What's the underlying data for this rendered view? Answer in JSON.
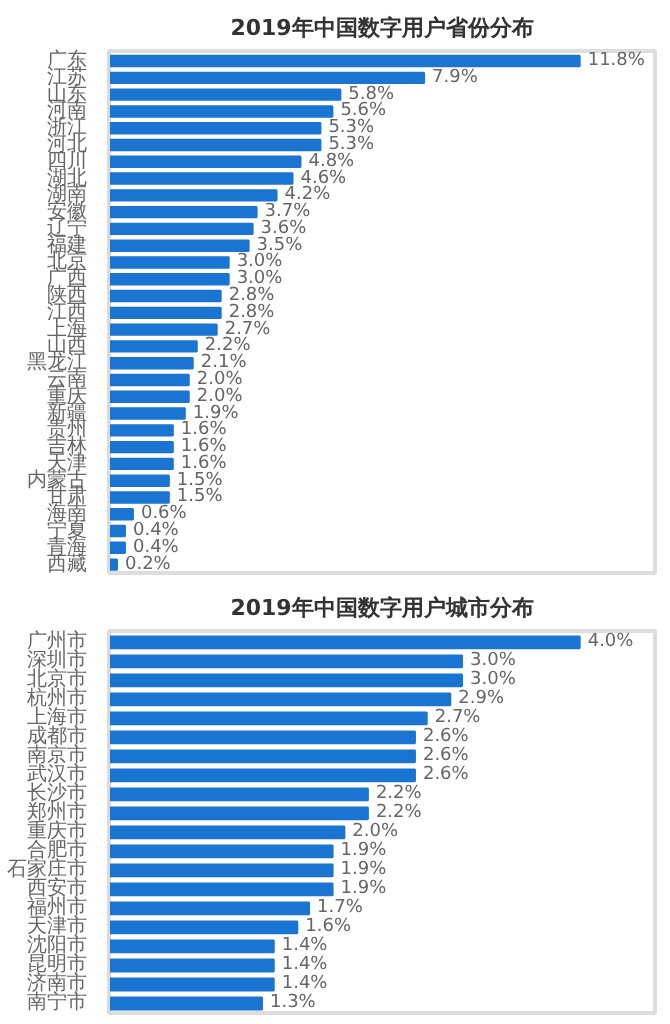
{
  "chart_data": [
    {
      "type": "bar",
      "orientation": "horizontal",
      "title": "2019年中国数字用户省份分布",
      "tick_labels": "y",
      "color": "#1a74d2",
      "categories": [
        "广东",
        "江苏",
        "山东",
        "河南",
        "浙江",
        "河北",
        "四川",
        "湖北",
        "湖南",
        "安徽",
        "辽宁",
        "福建",
        "北京",
        "广西",
        "陕西",
        "江西",
        "上海",
        "山西",
        "黑龙江",
        "云南",
        "重庆",
        "新疆",
        "贵州",
        "吉林",
        "天津",
        "内蒙古",
        "甘肃",
        "海南",
        "宁夏",
        "青海",
        "西藏"
      ],
      "values": [
        11.8,
        7.9,
        5.8,
        5.6,
        5.3,
        5.3,
        4.8,
        4.6,
        4.2,
        3.7,
        3.6,
        3.5,
        3.0,
        3.0,
        2.8,
        2.8,
        2.7,
        2.2,
        2.1,
        2.0,
        2.0,
        1.9,
        1.6,
        1.6,
        1.6,
        1.5,
        1.5,
        0.6,
        0.4,
        0.4,
        0.2
      ],
      "value_labels": [
        "11.8%",
        "7.9%",
        "5.8%",
        "5.6%",
        "5.3%",
        "5.3%",
        "4.8%",
        "4.6%",
        "4.2%",
        "3.7%",
        "3.6%",
        "3.5%",
        "3.0%",
        "3.0%",
        "2.8%",
        "2.8%",
        "2.7%",
        "2.2%",
        "2.1%",
        "2.0%",
        "2.0%",
        "1.9%",
        "1.6%",
        "1.6%",
        "1.6%",
        "1.5%",
        "1.5%",
        "0.6%",
        "0.4%",
        "0.4%",
        "0.2%"
      ]
    },
    {
      "type": "bar",
      "orientation": "horizontal",
      "title": "2019年中国数字用户城市分布",
      "tick_labels": "y",
      "color": "#1a74d2",
      "categories": [
        "广州市",
        "深圳市",
        "北京市",
        "杭州市",
        "上海市",
        "成都市",
        "南京市",
        "武汉市",
        "长沙市",
        "郑州市",
        "重庆市",
        "合肥市",
        "石家庄市",
        "西安市",
        "福州市",
        "天津市",
        "沈阳市",
        "昆明市",
        "济南市",
        "南宁市"
      ],
      "values": [
        4.0,
        3.0,
        3.0,
        2.9,
        2.7,
        2.6,
        2.6,
        2.6,
        2.2,
        2.2,
        2.0,
        1.9,
        1.9,
        1.9,
        1.7,
        1.6,
        1.4,
        1.4,
        1.4,
        1.3
      ],
      "value_labels": [
        "4.0%",
        "3.0%",
        "3.0%",
        "2.9%",
        "2.7%",
        "2.6%",
        "2.6%",
        "2.6%",
        "2.2%",
        "2.2%",
        "2.0%",
        "1.9%",
        "1.9%",
        "1.9%",
        "1.7%",
        "1.6%",
        "1.4%",
        "1.4%",
        "1.4%",
        "1.3%"
      ]
    }
  ]
}
